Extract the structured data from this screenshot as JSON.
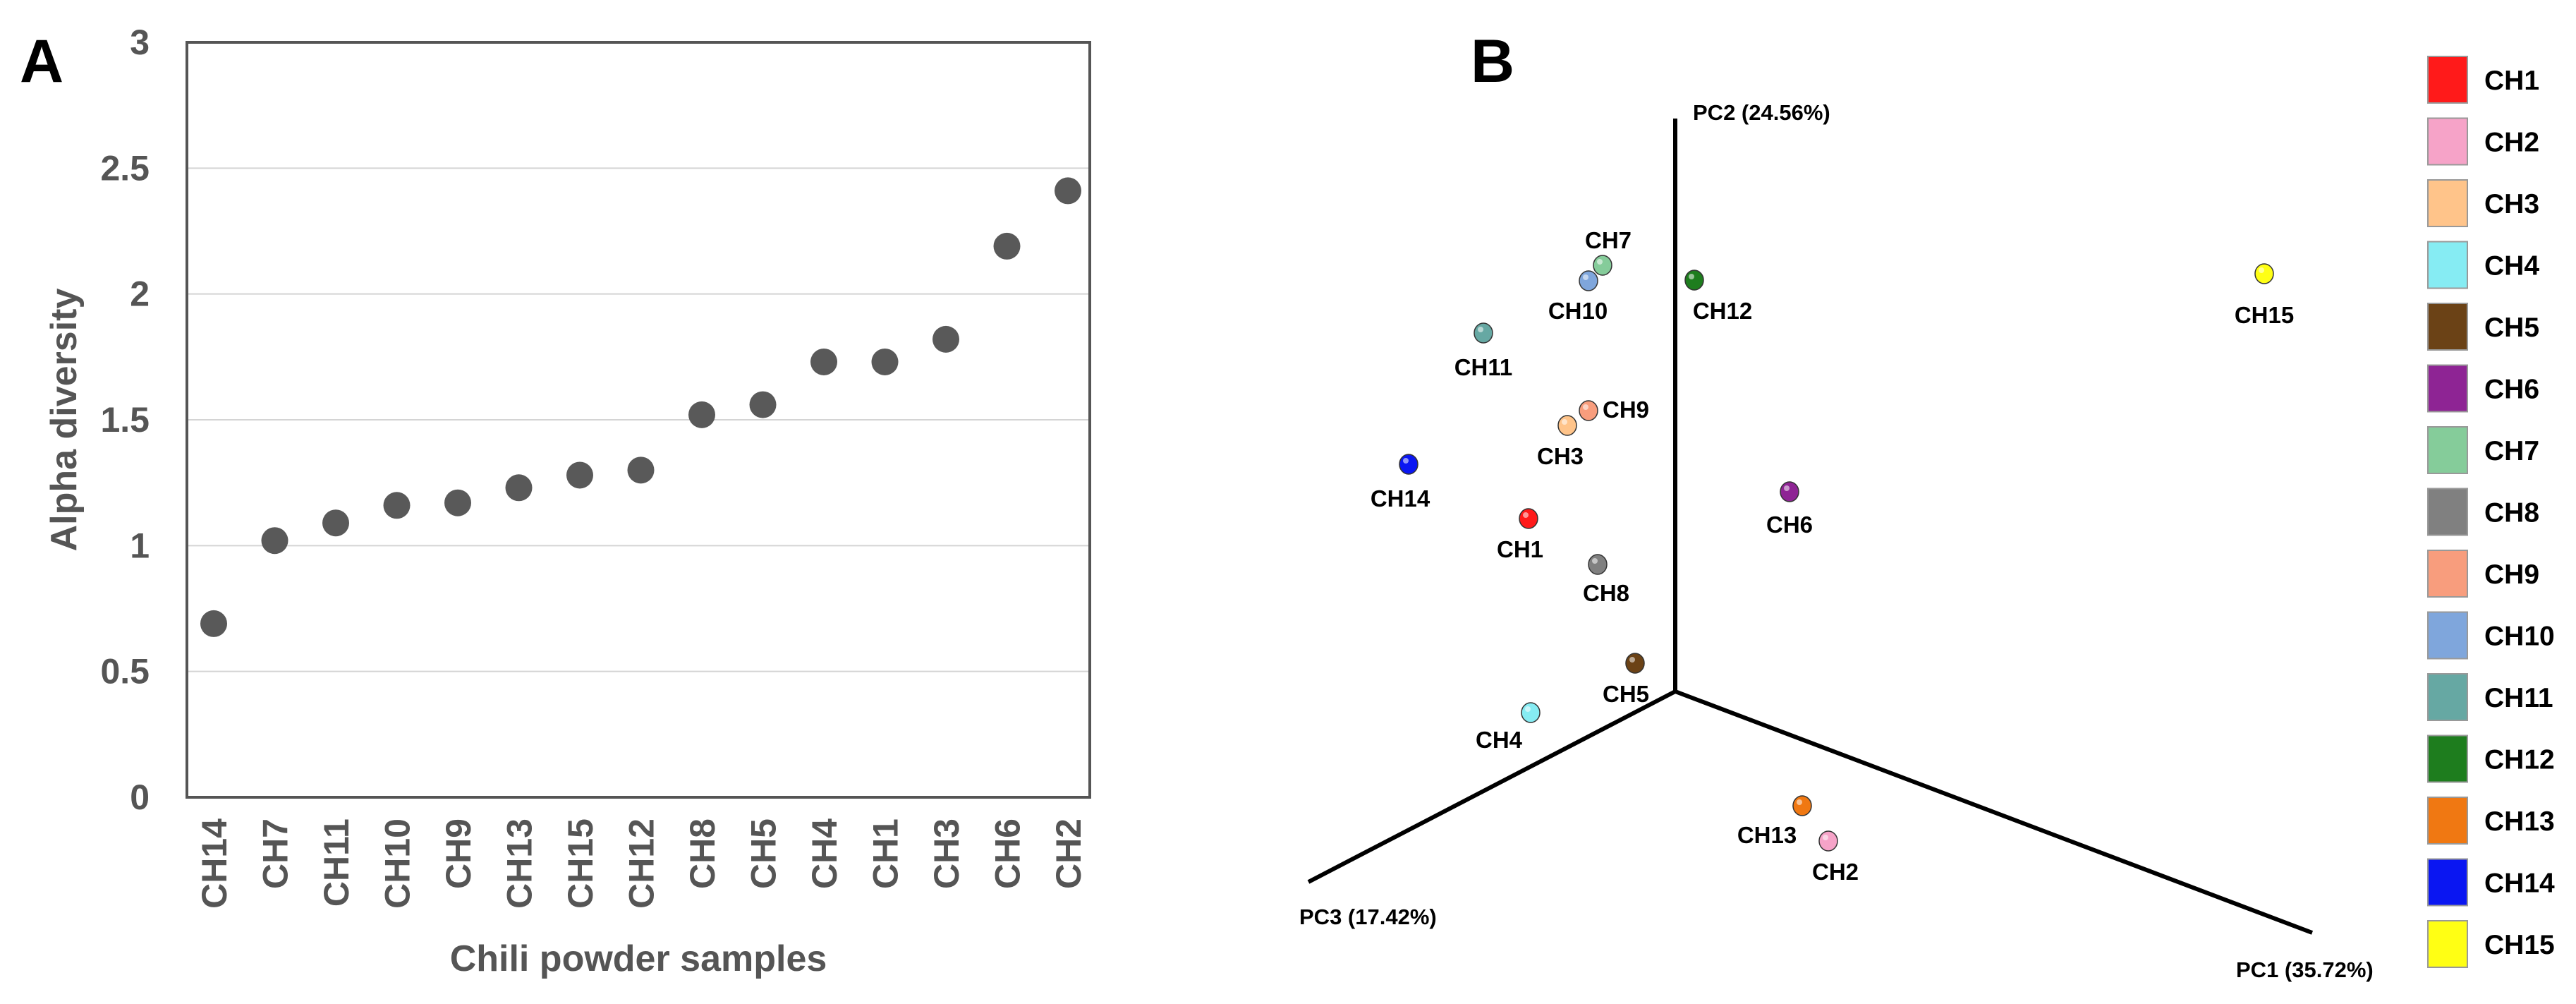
{
  "panel_a": {
    "letter": "A"
  },
  "panel_b": {
    "letter": "B"
  },
  "chart_data": [
    {
      "type": "scatter",
      "panel": "A",
      "xlabel": "Chili powder samples",
      "ylabel": "Alpha diversity",
      "ylim": [
        0,
        3
      ],
      "yticks": [
        "0",
        "0.5",
        "1",
        "1.5",
        "2",
        "2.5",
        "3"
      ],
      "grid": true,
      "point_color": "#595959",
      "categories": [
        "CH14",
        "CH7",
        "CH11",
        "CH10",
        "CH9",
        "CH13",
        "CH15",
        "CH12",
        "CH8",
        "CH5",
        "CH4",
        "CH1",
        "CH3",
        "CH6",
        "CH2"
      ],
      "values": [
        0.69,
        1.02,
        1.09,
        1.16,
        1.17,
        1.23,
        1.28,
        1.3,
        1.52,
        1.56,
        1.73,
        1.73,
        1.82,
        2.19,
        2.41
      ]
    },
    {
      "type": "scatter",
      "panel": "B",
      "axes": {
        "pc1": "PC1 (35.72%)",
        "pc2": "PC2 (24.56%)",
        "pc3": "PC3 (17.42%)"
      },
      "legend_position": "right",
      "points": [
        {
          "label": "CH1",
          "color": "#ff1a1a"
        },
        {
          "label": "CH2",
          "color": "#f6a3c8"
        },
        {
          "label": "CH3",
          "color": "#ffc48a"
        },
        {
          "label": "CH4",
          "color": "#86ecf3"
        },
        {
          "label": "CH5",
          "color": "#6b4216"
        },
        {
          "label": "CH6",
          "color": "#8e2494"
        },
        {
          "label": "CH7",
          "color": "#85cc9a"
        },
        {
          "label": "CH8",
          "color": "#808080"
        },
        {
          "label": "CH9",
          "color": "#f89d7d"
        },
        {
          "label": "CH10",
          "color": "#7fa6dc"
        },
        {
          "label": "CH11",
          "color": "#66a8a3"
        },
        {
          "label": "CH12",
          "color": "#1e7d1e"
        },
        {
          "label": "CH13",
          "color": "#f07812"
        },
        {
          "label": "CH14",
          "color": "#0a16f2"
        },
        {
          "label": "CH15",
          "color": "#ffff14"
        }
      ]
    }
  ]
}
